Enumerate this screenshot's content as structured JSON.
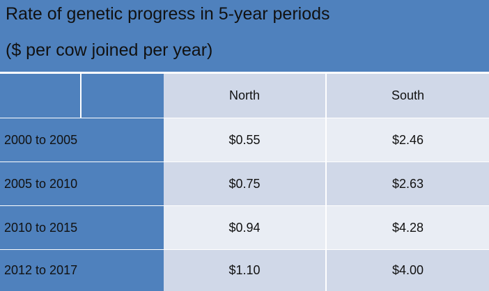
{
  "header": {
    "title": "Rate of genetic progress in 5-year periods",
    "subtitle": "($ per cow joined per year)"
  },
  "table": {
    "columns": [
      "North",
      "South"
    ],
    "rows": [
      [
        "2000 to 2005",
        "$0.55",
        "$2.46"
      ],
      [
        "2005 to 2010",
        "$0.75",
        "$2.63"
      ],
      [
        "2010 to 2015",
        "$0.94",
        "$4.28"
      ],
      [
        "2012 to 2017",
        "$1.10",
        "$4.00"
      ]
    ]
  }
}
